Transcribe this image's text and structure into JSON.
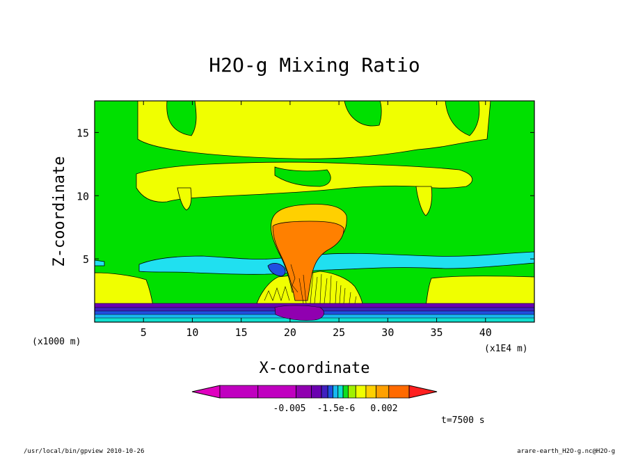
{
  "chart_data": {
    "type": "heatmap",
    "title": "H2O-g Mixing Ratio",
    "xlabel": "X-coordinate",
    "ylabel": "Z-coordinate",
    "x_unit_left": "(x1000 m)",
    "x_unit_right": "(x1E4 m)",
    "x_ticks": [
      5,
      10,
      15,
      20,
      25,
      30,
      35,
      40
    ],
    "y_ticks": [
      5,
      10,
      15
    ],
    "xlim": [
      0,
      45
    ],
    "ylim": [
      0,
      17.5
    ],
    "colorbar": {
      "labels": [
        "-0.005",
        "-1.5e-6",
        "0.002"
      ],
      "colors": [
        "#c000c0",
        "#c000c0",
        "#9000b0",
        "#6a00b0",
        "#4020c0",
        "#2050e0",
        "#18b8f0",
        "#10e0d0",
        "#10e020",
        "#a0f000",
        "#f0ff00",
        "#ffd000",
        "#ffa000",
        "#ff6a00"
      ],
      "end_low": "#e000c0",
      "end_high": "#ff2020"
    },
    "contour_fields": [
      {
        "level": "green",
        "color": "#00e000"
      },
      {
        "level": "yellow",
        "color": "#f0ff00"
      },
      {
        "level": "light-orange",
        "color": "#ffd000"
      },
      {
        "level": "orange",
        "color": "#ff8000"
      },
      {
        "level": "cyan",
        "color": "#20e0f0"
      },
      {
        "level": "blue",
        "color": "#2050e0"
      },
      {
        "level": "purple",
        "color": "#6a00b0"
      }
    ],
    "annotation": "t=7500 s",
    "grid": false,
    "legend": "colorbar-bottom"
  },
  "footer": {
    "left": "/usr/local/bin/gpview  2010-10-26",
    "right": "arare-earth_H2O-g.nc@H2O-g"
  }
}
